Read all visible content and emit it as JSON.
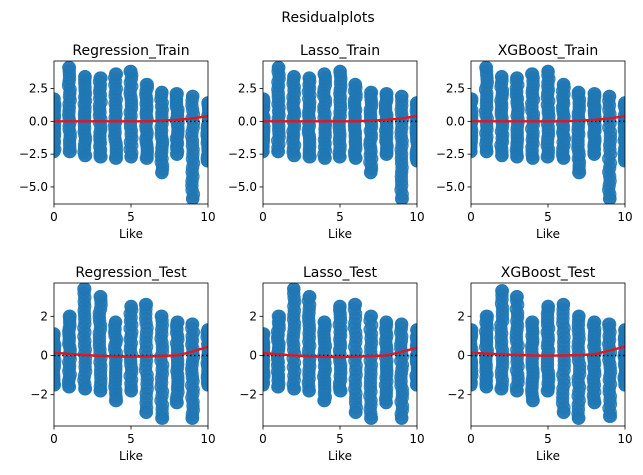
{
  "figure": {
    "suptitle": "Residualplots"
  },
  "chart_data": [
    {
      "type": "scatter",
      "title": "Regression_Train",
      "xlabel": "Like",
      "ylabel": "",
      "xlim": [
        0,
        10
      ],
      "ylim": [
        -6.3,
        4.6
      ],
      "xticks": [
        0,
        5,
        10
      ],
      "yticks": [
        -5.0,
        -2.5,
        0.0,
        2.5
      ],
      "ytick_labels": [
        "−5.0",
        "−2.5",
        "0.0",
        "2.5"
      ],
      "points": {
        "x": [
          0,
          1,
          2,
          3,
          4,
          5,
          6,
          7,
          8,
          9,
          10
        ],
        "ymin": [
          -2.3,
          -2.3,
          -2.6,
          -2.7,
          -2.8,
          -2.7,
          -2.8,
          -3.9,
          -2.5,
          -5.9,
          -3.0
        ],
        "ymax": [
          1.7,
          4.1,
          3.4,
          3.3,
          3.6,
          3.8,
          2.8,
          2.2,
          2.1,
          1.9,
          1.4
        ]
      },
      "zero_line": true,
      "lowess": {
        "x": [
          0,
          1,
          2,
          3,
          4,
          5,
          6,
          7,
          8,
          9,
          10
        ],
        "y": [
          0.0,
          0.0,
          0.0,
          0.0,
          0.0,
          0.0,
          0.0,
          0.05,
          0.12,
          0.22,
          0.4
        ]
      }
    },
    {
      "type": "scatter",
      "title": "Lasso_Train",
      "xlabel": "Like",
      "ylabel": "",
      "xlim": [
        0,
        10
      ],
      "ylim": [
        -6.3,
        4.6
      ],
      "xticks": [
        0,
        5,
        10
      ],
      "yticks": [
        -5.0,
        -2.5,
        0.0,
        2.5
      ],
      "ytick_labels": [
        "−5.0",
        "−2.5",
        "0.0",
        "2.5"
      ],
      "points": {
        "x": [
          0,
          1,
          2,
          3,
          4,
          5,
          6,
          7,
          8,
          9,
          10
        ],
        "ymin": [
          -2.3,
          -2.3,
          -2.6,
          -2.7,
          -2.8,
          -2.7,
          -2.8,
          -3.9,
          -2.5,
          -5.9,
          -3.0
        ],
        "ymax": [
          1.7,
          4.1,
          3.4,
          3.3,
          3.6,
          3.8,
          2.8,
          2.2,
          2.1,
          1.9,
          1.4
        ]
      },
      "zero_line": true,
      "lowess": {
        "x": [
          0,
          1,
          2,
          3,
          4,
          5,
          6,
          7,
          8,
          9,
          10
        ],
        "y": [
          0.0,
          0.0,
          0.0,
          0.0,
          0.0,
          0.0,
          0.0,
          0.05,
          0.12,
          0.22,
          0.4
        ]
      }
    },
    {
      "type": "scatter",
      "title": "XGBoost_Train",
      "xlabel": "Like",
      "ylabel": "",
      "xlim": [
        0,
        10
      ],
      "ylim": [
        -6.3,
        4.6
      ],
      "xticks": [
        0,
        5,
        10
      ],
      "yticks": [
        -5.0,
        -2.5,
        0.0,
        2.5
      ],
      "ytick_labels": [
        "−5.0",
        "−2.5",
        "0.0",
        "2.5"
      ],
      "points": {
        "x": [
          0,
          1,
          2,
          3,
          4,
          5,
          6,
          7,
          8,
          9,
          10
        ],
        "ymin": [
          -2.3,
          -2.3,
          -2.6,
          -2.7,
          -2.8,
          -2.7,
          -2.8,
          -3.9,
          -2.5,
          -5.9,
          -3.0
        ],
        "ymax": [
          1.7,
          4.1,
          3.4,
          3.3,
          3.6,
          3.8,
          2.8,
          2.2,
          2.1,
          1.9,
          1.4
        ]
      },
      "zero_line": true,
      "lowess": {
        "x": [
          0,
          1,
          2,
          3,
          4,
          5,
          6,
          7,
          8,
          9,
          10
        ],
        "y": [
          0.0,
          0.0,
          0.0,
          0.0,
          0.0,
          0.0,
          0.0,
          0.05,
          0.12,
          0.22,
          0.4
        ]
      }
    },
    {
      "type": "scatter",
      "title": "Regression_Test",
      "xlabel": "Like",
      "ylabel": "",
      "xlim": [
        0,
        10
      ],
      "ylim": [
        -3.6,
        3.7
      ],
      "xticks": [
        0,
        5,
        10
      ],
      "yticks": [
        -2,
        0,
        2
      ],
      "ytick_labels": [
        "−2",
        "0",
        "2"
      ],
      "points": {
        "x": [
          0,
          1,
          2,
          3,
          4,
          5,
          6,
          7,
          8,
          9,
          10
        ],
        "ymin": [
          -1.5,
          -1.6,
          -1.7,
          -1.8,
          -2.3,
          -1.8,
          -2.9,
          -3.2,
          -2.4,
          -3.2,
          -1.5
        ],
        "ymax": [
          1.1,
          2.0,
          3.4,
          3.0,
          1.7,
          2.5,
          2.6,
          2.0,
          1.7,
          1.6,
          1.3
        ]
      },
      "zero_line": true,
      "lowess": {
        "x": [
          0,
          1,
          2,
          3,
          4,
          5,
          6,
          7,
          8,
          9,
          10
        ],
        "y": [
          0.15,
          0.08,
          0.02,
          -0.02,
          -0.05,
          -0.06,
          -0.05,
          -0.02,
          0.0,
          0.2,
          0.45
        ]
      }
    },
    {
      "type": "scatter",
      "title": "Lasso_Test",
      "xlabel": "Like",
      "ylabel": "",
      "xlim": [
        0,
        10
      ],
      "ylim": [
        -3.6,
        3.7
      ],
      "xticks": [
        0,
        5,
        10
      ],
      "yticks": [
        -2,
        0,
        2
      ],
      "ytick_labels": [
        "−2",
        "0",
        "2"
      ],
      "points": {
        "x": [
          0,
          1,
          2,
          3,
          4,
          5,
          6,
          7,
          8,
          9,
          10
        ],
        "ymin": [
          -1.5,
          -1.6,
          -1.7,
          -1.8,
          -2.3,
          -1.8,
          -2.9,
          -3.2,
          -2.4,
          -3.2,
          -1.5
        ],
        "ymax": [
          1.1,
          2.0,
          3.4,
          3.0,
          1.7,
          2.5,
          2.6,
          2.0,
          1.7,
          1.6,
          1.3
        ]
      },
      "zero_line": true,
      "lowess": {
        "x": [
          0,
          1,
          2,
          3,
          4,
          5,
          6,
          7,
          8,
          9,
          10
        ],
        "y": [
          0.12,
          0.06,
          0.0,
          -0.04,
          -0.07,
          -0.08,
          -0.06,
          -0.03,
          0.0,
          0.18,
          0.4
        ]
      }
    },
    {
      "type": "scatter",
      "title": "XGBoost_Test",
      "xlabel": "Like",
      "ylabel": "",
      "xlim": [
        0,
        10
      ],
      "ylim": [
        -3.6,
        3.7
      ],
      "xticks": [
        0,
        5,
        10
      ],
      "yticks": [
        -2,
        0,
        2
      ],
      "ytick_labels": [
        "−2",
        "0",
        "2"
      ],
      "points": {
        "x": [
          0,
          1,
          2,
          3,
          4,
          5,
          6,
          7,
          8,
          9,
          10
        ],
        "ymin": [
          -1.5,
          -1.6,
          -1.7,
          -1.8,
          -2.3,
          -1.8,
          -2.9,
          -3.2,
          -2.4,
          -3.1,
          -1.5
        ],
        "ymax": [
          1.3,
          2.0,
          3.3,
          3.0,
          1.7,
          2.5,
          2.6,
          2.0,
          1.7,
          1.6,
          1.3
        ]
      },
      "zero_line": true,
      "lowess": {
        "x": [
          0,
          1,
          2,
          3,
          4,
          5,
          6,
          7,
          8,
          9,
          10
        ],
        "y": [
          0.15,
          0.1,
          0.06,
          0.03,
          0.0,
          -0.01,
          0.0,
          0.02,
          0.06,
          0.25,
          0.45
        ]
      }
    }
  ]
}
